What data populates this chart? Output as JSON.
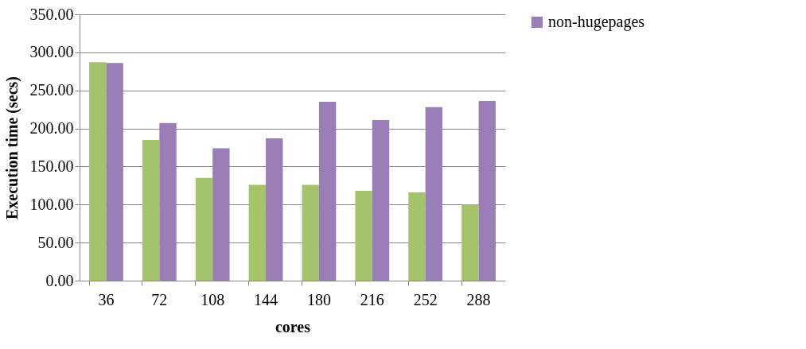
{
  "chart_data": {
    "type": "bar",
    "xlabel": "cores",
    "ylabel": "Execution time (secs)",
    "categories": [
      "36",
      "72",
      "108",
      "144",
      "180",
      "216",
      "252",
      "288"
    ],
    "series": [
      {
        "color": "#a5c36b",
        "values": [
          287,
          185,
          135,
          126,
          126,
          118,
          116,
          100
        ]
      },
      {
        "name": "non-hugepages",
        "color": "#987db7",
        "values": [
          286,
          207,
          174,
          187,
          235,
          211,
          228,
          236
        ]
      }
    ],
    "ylim": [
      0,
      350
    ],
    "yticks": [
      {
        "value": 0,
        "label": "0.00"
      },
      {
        "value": 50,
        "label": "50.00"
      },
      {
        "value": 100,
        "label": "100.00"
      },
      {
        "value": 150,
        "label": "150.00"
      },
      {
        "value": 200,
        "label": "200.00"
      },
      {
        "value": 250,
        "label": "250.00"
      },
      {
        "value": 300,
        "label": "300.00"
      },
      {
        "value": 350,
        "label": "350.00"
      }
    ],
    "grid": "y",
    "legend": "right"
  }
}
